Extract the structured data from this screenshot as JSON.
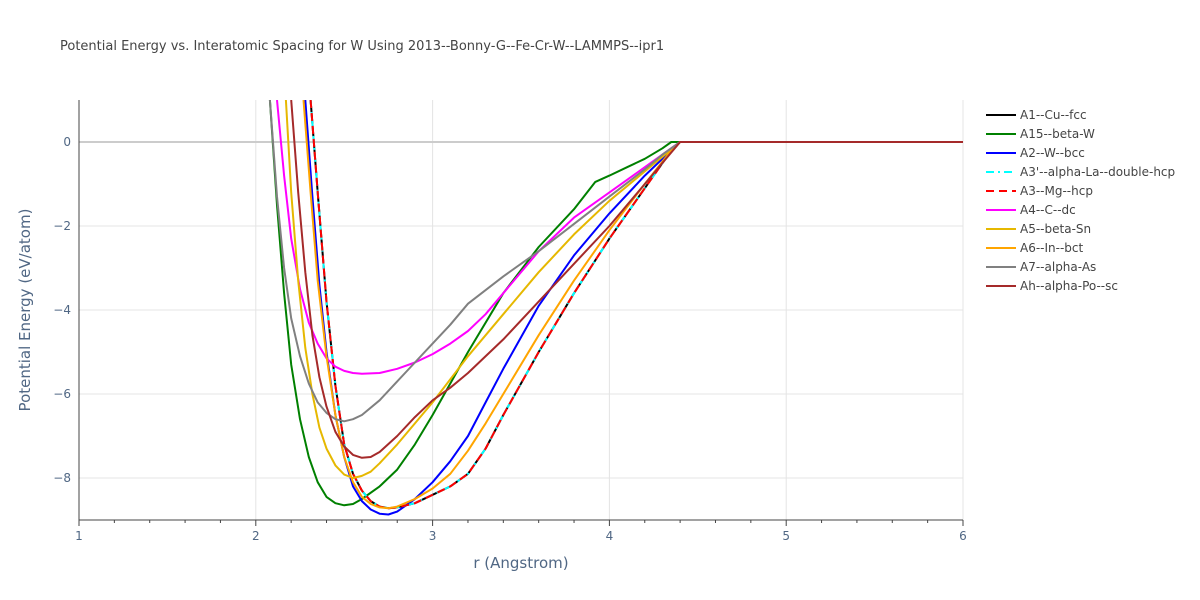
{
  "chart_data": {
    "type": "line",
    "title": "Potential Energy vs. Interatomic Spacing for W Using 2013--Bonny-G--Fe-Cr-W--LAMMPS--ipr1",
    "xlabel": "r (Angstrom)",
    "ylabel": "Potential Energy (eV/atom)",
    "xlim": [
      1,
      6
    ],
    "ylim": [
      -9,
      1
    ],
    "x_ticks": [
      "1",
      "2",
      "3",
      "4",
      "5",
      "6"
    ],
    "y_ticks": [
      "0",
      "−2",
      "−4",
      "−6",
      "−8"
    ],
    "grid": true,
    "legend_position": "right",
    "series": [
      {
        "name": "A1--Cu--fcc",
        "color": "#000000",
        "dash": "solid",
        "points": [
          [
            2.31,
            1.0
          ],
          [
            2.35,
            -1.2
          ],
          [
            2.4,
            -3.8
          ],
          [
            2.45,
            -5.8
          ],
          [
            2.5,
            -7.2
          ],
          [
            2.55,
            -7.9
          ],
          [
            2.6,
            -8.3
          ],
          [
            2.65,
            -8.55
          ],
          [
            2.7,
            -8.68
          ],
          [
            2.75,
            -8.72
          ],
          [
            2.8,
            -8.7
          ],
          [
            2.9,
            -8.6
          ],
          [
            3.0,
            -8.4
          ],
          [
            3.1,
            -8.2
          ],
          [
            3.2,
            -7.9
          ],
          [
            3.3,
            -7.3
          ],
          [
            3.4,
            -6.5
          ],
          [
            3.6,
            -5.0
          ],
          [
            3.8,
            -3.6
          ],
          [
            4.0,
            -2.3
          ],
          [
            4.2,
            -1.1
          ],
          [
            4.35,
            -0.2
          ],
          [
            4.4,
            0
          ],
          [
            4.6,
            0
          ],
          [
            5.0,
            0
          ],
          [
            6.0,
            0
          ]
        ]
      },
      {
        "name": "A15--beta-W",
        "color": "#008000",
        "dash": "solid",
        "points": [
          [
            2.08,
            1.0
          ],
          [
            2.12,
            -1.5
          ],
          [
            2.16,
            -3.6
          ],
          [
            2.2,
            -5.3
          ],
          [
            2.25,
            -6.6
          ],
          [
            2.3,
            -7.5
          ],
          [
            2.35,
            -8.1
          ],
          [
            2.4,
            -8.45
          ],
          [
            2.45,
            -8.6
          ],
          [
            2.5,
            -8.65
          ],
          [
            2.55,
            -8.62
          ],
          [
            2.6,
            -8.5
          ],
          [
            2.7,
            -8.2
          ],
          [
            2.8,
            -7.8
          ],
          [
            2.9,
            -7.2
          ],
          [
            3.0,
            -6.5
          ],
          [
            3.2,
            -5.0
          ],
          [
            3.4,
            -3.6
          ],
          [
            3.6,
            -2.5
          ],
          [
            3.8,
            -1.6
          ],
          [
            3.92,
            -0.95
          ],
          [
            4.0,
            -0.8
          ],
          [
            4.1,
            -0.6
          ],
          [
            4.2,
            -0.4
          ],
          [
            4.3,
            -0.15
          ],
          [
            4.35,
            0
          ],
          [
            4.6,
            0
          ],
          [
            5.0,
            0
          ],
          [
            6.0,
            0
          ]
        ]
      },
      {
        "name": "A2--W--bcc",
        "color": "#0000ff",
        "dash": "solid",
        "points": [
          [
            2.28,
            1.0
          ],
          [
            2.32,
            -1.3
          ],
          [
            2.36,
            -3.4
          ],
          [
            2.4,
            -5.0
          ],
          [
            2.45,
            -6.5
          ],
          [
            2.5,
            -7.5
          ],
          [
            2.55,
            -8.2
          ],
          [
            2.6,
            -8.55
          ],
          [
            2.65,
            -8.75
          ],
          [
            2.7,
            -8.85
          ],
          [
            2.75,
            -8.87
          ],
          [
            2.8,
            -8.8
          ],
          [
            2.9,
            -8.5
          ],
          [
            3.0,
            -8.1
          ],
          [
            3.1,
            -7.6
          ],
          [
            3.2,
            -7.0
          ],
          [
            3.3,
            -6.2
          ],
          [
            3.4,
            -5.4
          ],
          [
            3.6,
            -3.9
          ],
          [
            3.8,
            -2.7
          ],
          [
            4.0,
            -1.7
          ],
          [
            4.2,
            -0.8
          ],
          [
            4.3,
            -0.4
          ],
          [
            4.4,
            0
          ],
          [
            4.6,
            0
          ],
          [
            5.0,
            0
          ],
          [
            6.0,
            0
          ]
        ]
      },
      {
        "name": "A3'--alpha-La--double-hcp",
        "color": "#00ffff",
        "dash": "dashdot",
        "points": [
          [
            2.31,
            1.0
          ],
          [
            2.35,
            -1.2
          ],
          [
            2.4,
            -3.8
          ],
          [
            2.45,
            -5.8
          ],
          [
            2.5,
            -7.2
          ],
          [
            2.55,
            -7.9
          ],
          [
            2.6,
            -8.3
          ],
          [
            2.65,
            -8.55
          ],
          [
            2.7,
            -8.68
          ],
          [
            2.75,
            -8.72
          ],
          [
            2.8,
            -8.7
          ],
          [
            2.9,
            -8.6
          ],
          [
            3.0,
            -8.4
          ],
          [
            3.1,
            -8.2
          ],
          [
            3.2,
            -7.9
          ],
          [
            3.3,
            -7.3
          ],
          [
            3.4,
            -6.5
          ],
          [
            3.6,
            -5.0
          ],
          [
            3.8,
            -3.6
          ],
          [
            4.0,
            -2.3
          ],
          [
            4.2,
            -1.1
          ],
          [
            4.35,
            -0.2
          ],
          [
            4.4,
            0
          ],
          [
            4.6,
            0
          ],
          [
            5.0,
            0
          ],
          [
            6.0,
            0
          ]
        ]
      },
      {
        "name": "A3--Mg--hcp",
        "color": "#ff0000",
        "dash": "dash",
        "points": [
          [
            2.31,
            1.0
          ],
          [
            2.35,
            -1.2
          ],
          [
            2.4,
            -3.8
          ],
          [
            2.45,
            -5.8
          ],
          [
            2.5,
            -7.2
          ],
          [
            2.55,
            -7.9
          ],
          [
            2.6,
            -8.3
          ],
          [
            2.65,
            -8.55
          ],
          [
            2.7,
            -8.68
          ],
          [
            2.75,
            -8.72
          ],
          [
            2.8,
            -8.7
          ],
          [
            2.9,
            -8.6
          ],
          [
            3.0,
            -8.4
          ],
          [
            3.1,
            -8.2
          ],
          [
            3.2,
            -7.9
          ],
          [
            3.3,
            -7.3
          ],
          [
            3.4,
            -6.5
          ],
          [
            3.6,
            -5.0
          ],
          [
            3.8,
            -3.6
          ],
          [
            4.0,
            -2.3
          ],
          [
            4.2,
            -1.1
          ],
          [
            4.35,
            -0.2
          ],
          [
            4.4,
            0
          ],
          [
            4.6,
            0
          ],
          [
            5.0,
            0
          ],
          [
            6.0,
            0
          ]
        ]
      },
      {
        "name": "A4--C--dc",
        "color": "#ff00ff",
        "dash": "solid",
        "points": [
          [
            2.12,
            1.0
          ],
          [
            2.16,
            -0.8
          ],
          [
            2.2,
            -2.3
          ],
          [
            2.25,
            -3.5
          ],
          [
            2.3,
            -4.3
          ],
          [
            2.35,
            -4.8
          ],
          [
            2.4,
            -5.15
          ],
          [
            2.45,
            -5.35
          ],
          [
            2.5,
            -5.45
          ],
          [
            2.55,
            -5.5
          ],
          [
            2.6,
            -5.52
          ],
          [
            2.7,
            -5.5
          ],
          [
            2.8,
            -5.4
          ],
          [
            2.9,
            -5.25
          ],
          [
            3.0,
            -5.05
          ],
          [
            3.1,
            -4.8
          ],
          [
            3.2,
            -4.5
          ],
          [
            3.3,
            -4.1
          ],
          [
            3.4,
            -3.6
          ],
          [
            3.6,
            -2.6
          ],
          [
            3.8,
            -1.8
          ],
          [
            4.0,
            -1.2
          ],
          [
            4.2,
            -0.6
          ],
          [
            4.3,
            -0.3
          ],
          [
            4.4,
            0
          ],
          [
            4.6,
            0
          ],
          [
            5.0,
            0
          ],
          [
            6.0,
            0
          ]
        ]
      },
      {
        "name": "A5--beta-Sn",
        "color": "#e6b800",
        "dash": "solid",
        "points": [
          [
            2.17,
            1.0
          ],
          [
            2.2,
            -1.2
          ],
          [
            2.24,
            -3.3
          ],
          [
            2.28,
            -4.9
          ],
          [
            2.32,
            -6.0
          ],
          [
            2.36,
            -6.8
          ],
          [
            2.4,
            -7.3
          ],
          [
            2.45,
            -7.7
          ],
          [
            2.5,
            -7.92
          ],
          [
            2.55,
            -8.0
          ],
          [
            2.6,
            -7.95
          ],
          [
            2.65,
            -7.85
          ],
          [
            2.7,
            -7.65
          ],
          [
            2.8,
            -7.2
          ],
          [
            2.9,
            -6.7
          ],
          [
            3.0,
            -6.2
          ],
          [
            3.2,
            -5.1
          ],
          [
            3.4,
            -4.1
          ],
          [
            3.6,
            -3.1
          ],
          [
            3.8,
            -2.2
          ],
          [
            4.0,
            -1.4
          ],
          [
            4.2,
            -0.7
          ],
          [
            4.3,
            -0.35
          ],
          [
            4.4,
            0
          ],
          [
            4.6,
            0
          ],
          [
            5.0,
            0
          ],
          [
            6.0,
            0
          ]
        ]
      },
      {
        "name": "A6--In--bct",
        "color": "#ffa500",
        "dash": "solid",
        "points": [
          [
            2.27,
            1.0
          ],
          [
            2.31,
            -1.2
          ],
          [
            2.35,
            -3.3
          ],
          [
            2.4,
            -5.1
          ],
          [
            2.45,
            -6.5
          ],
          [
            2.5,
            -7.5
          ],
          [
            2.55,
            -8.1
          ],
          [
            2.6,
            -8.45
          ],
          [
            2.65,
            -8.62
          ],
          [
            2.7,
            -8.7
          ],
          [
            2.75,
            -8.72
          ],
          [
            2.8,
            -8.68
          ],
          [
            2.9,
            -8.5
          ],
          [
            3.0,
            -8.25
          ],
          [
            3.1,
            -7.9
          ],
          [
            3.2,
            -7.35
          ],
          [
            3.3,
            -6.7
          ],
          [
            3.4,
            -6.0
          ],
          [
            3.6,
            -4.6
          ],
          [
            3.8,
            -3.3
          ],
          [
            4.0,
            -2.1
          ],
          [
            4.2,
            -1.0
          ],
          [
            4.35,
            -0.2
          ],
          [
            4.4,
            0
          ],
          [
            4.6,
            0
          ],
          [
            5.0,
            0
          ],
          [
            6.0,
            0
          ]
        ]
      },
      {
        "name": "A7--alpha-As",
        "color": "#808080",
        "dash": "solid",
        "points": [
          [
            2.08,
            1.0
          ],
          [
            2.12,
            -1.3
          ],
          [
            2.16,
            -3.0
          ],
          [
            2.2,
            -4.2
          ],
          [
            2.25,
            -5.1
          ],
          [
            2.3,
            -5.75
          ],
          [
            2.35,
            -6.2
          ],
          [
            2.4,
            -6.45
          ],
          [
            2.45,
            -6.6
          ],
          [
            2.5,
            -6.65
          ],
          [
            2.55,
            -6.6
          ],
          [
            2.6,
            -6.5
          ],
          [
            2.7,
            -6.15
          ],
          [
            2.8,
            -5.7
          ],
          [
            2.9,
            -5.25
          ],
          [
            3.0,
            -4.8
          ],
          [
            3.1,
            -4.35
          ],
          [
            3.2,
            -3.85
          ],
          [
            3.4,
            -3.2
          ],
          [
            3.6,
            -2.6
          ],
          [
            3.8,
            -1.95
          ],
          [
            4.0,
            -1.3
          ],
          [
            4.2,
            -0.65
          ],
          [
            4.3,
            -0.3
          ],
          [
            4.4,
            0
          ],
          [
            4.6,
            0
          ],
          [
            5.0,
            0
          ],
          [
            6.0,
            0
          ]
        ]
      },
      {
        "name": "Ah--alpha-Po--sc",
        "color": "#a52a2a",
        "dash": "solid",
        "points": [
          [
            2.2,
            1.0
          ],
          [
            2.24,
            -1.2
          ],
          [
            2.28,
            -3.1
          ],
          [
            2.32,
            -4.6
          ],
          [
            2.36,
            -5.6
          ],
          [
            2.4,
            -6.3
          ],
          [
            2.45,
            -6.9
          ],
          [
            2.5,
            -7.25
          ],
          [
            2.55,
            -7.45
          ],
          [
            2.6,
            -7.52
          ],
          [
            2.65,
            -7.5
          ],
          [
            2.7,
            -7.38
          ],
          [
            2.8,
            -7.0
          ],
          [
            2.9,
            -6.55
          ],
          [
            3.0,
            -6.15
          ],
          [
            3.1,
            -5.85
          ],
          [
            3.2,
            -5.5
          ],
          [
            3.4,
            -4.7
          ],
          [
            3.6,
            -3.8
          ],
          [
            3.8,
            -2.9
          ],
          [
            4.0,
            -2.0
          ],
          [
            4.2,
            -1.0
          ],
          [
            4.3,
            -0.5
          ],
          [
            4.4,
            0
          ],
          [
            4.6,
            0
          ],
          [
            5.0,
            0
          ],
          [
            6.0,
            0
          ]
        ]
      }
    ]
  }
}
